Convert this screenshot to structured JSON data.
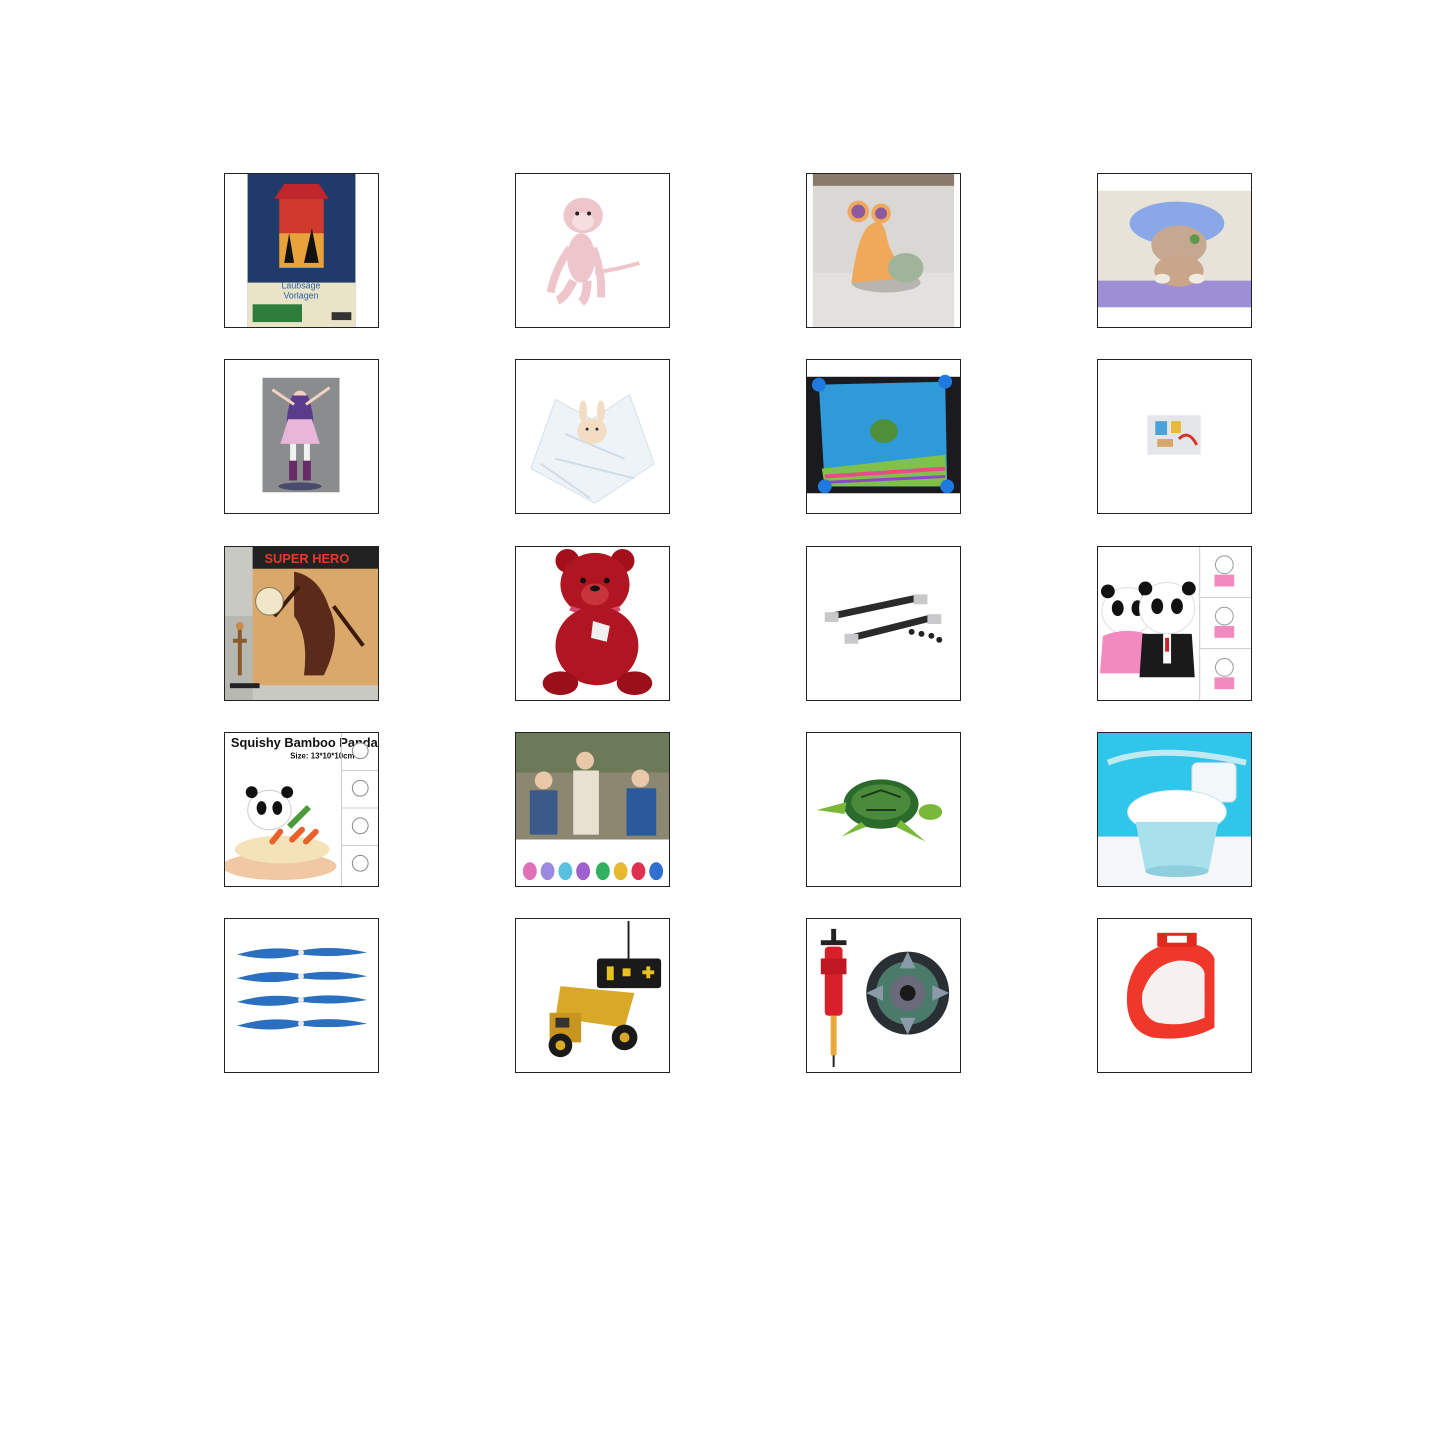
{
  "products": [
    {
      "name": "laubsaege-lantern",
      "icon": "lantern-kit-icon",
      "texts": [
        "Laubsäge",
        "Vorlagen"
      ]
    },
    {
      "name": "pink-monkey-plush",
      "icon": "monkey-plush-icon"
    },
    {
      "name": "snail-figure",
      "icon": "snail-figure-icon"
    },
    {
      "name": "mushroom-pet-figure",
      "icon": "mushroom-figure-icon"
    },
    {
      "name": "anime-figure",
      "icon": "anime-figure-icon"
    },
    {
      "name": "bunny-comforter",
      "icon": "bunny-comforter-icon"
    },
    {
      "name": "blue-comforter-blanket",
      "icon": "blanket-icon"
    },
    {
      "name": "tiny-toy-set",
      "icon": "toy-set-icon"
    },
    {
      "name": "comic-figure-box",
      "icon": "comic-figure-icon",
      "texts": [
        "SUPER HERO"
      ]
    },
    {
      "name": "red-teddy-bear",
      "icon": "teddy-bear-icon"
    },
    {
      "name": "rc-drive-shafts",
      "icon": "drive-shaft-icon"
    },
    {
      "name": "panda-couple-squishy",
      "icon": "panda-couple-icon"
    },
    {
      "name": "squishy-bamboo-panda",
      "icon": "panda-squishy-icon",
      "texts": [
        "Squishy Bamboo Panda",
        "Size: 13*10*10cm"
      ]
    },
    {
      "name": "kids-tamagotchi-keychains",
      "icon": "keychain-pets-icon"
    },
    {
      "name": "sea-turtle-toy",
      "icon": "turtle-icon"
    },
    {
      "name": "kids-potty-toilet",
      "icon": "potty-icon"
    },
    {
      "name": "blue-propellers",
      "icon": "propeller-icon"
    },
    {
      "name": "rc-dump-truck",
      "icon": "dump-truck-icon"
    },
    {
      "name": "beyblade-launcher",
      "icon": "spinning-top-icon"
    },
    {
      "name": "red-plastic-part",
      "icon": "red-bracket-icon"
    }
  ]
}
